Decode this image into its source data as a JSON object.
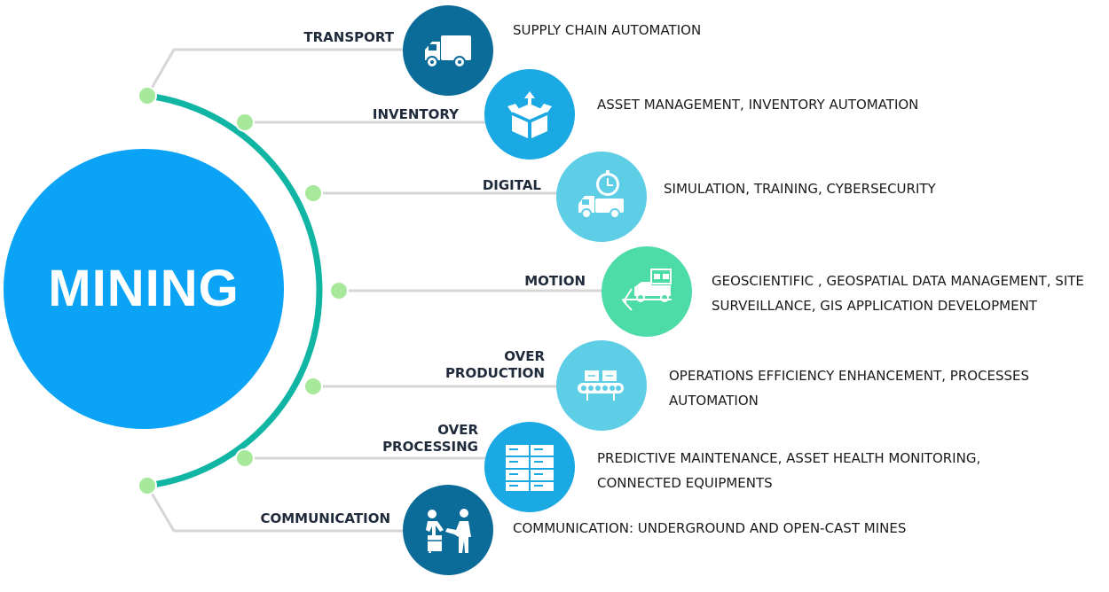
{
  "title": "MINING",
  "colors": {
    "main_circle": "#0aa3f5",
    "arc": "#10b5a3",
    "node": "#a7e99a",
    "connector": "#d6d6d6",
    "transport": "#0b6b99",
    "inventory": "#1aa9e2",
    "digital": "#5ecde6",
    "motion": "#4ddba8",
    "over_production": "#5ecde6",
    "over_processing": "#1aa9e2",
    "communication": "#0b6b99"
  },
  "categories": [
    {
      "key": "transport",
      "label": "TRANSPORT",
      "icon": "truck-icon",
      "description": "SUPPLY CHAIN AUTOMATION"
    },
    {
      "key": "inventory",
      "label": "INVENTORY",
      "icon": "box-arrow-icon",
      "description": "ASSET MANAGEMENT, INVENTORY AUTOMATION"
    },
    {
      "key": "digital",
      "label": "DIGITAL",
      "icon": "truck-clock-icon",
      "description": "SIMULATION, TRAINING, CYBERSECURITY"
    },
    {
      "key": "motion",
      "label": "MOTION",
      "icon": "forklift-motion-icon",
      "description": "GEOSCIENTIFIC , GEOSPATIAL DATA MANAGEMENT, SITE SURVEILLANCE, GIS APPLICATION DEVELOPMENT"
    },
    {
      "key": "over_production",
      "label_line1": "OVER",
      "label_line2": "PRODUCTION",
      "icon": "conveyor-icon",
      "description": "OPERATIONS EFFICIENCY ENHANCEMENT, PROCESSES AUTOMATION"
    },
    {
      "key": "over_processing",
      "label_line1": "OVER",
      "label_line2": "PROCESSING",
      "icon": "stacked-boxes-icon",
      "description": "PREDICTIVE MAINTENANCE, ASSET HEALTH MONITORING, CONNECTED EQUIPMENTS"
    },
    {
      "key": "communication",
      "label": "COMMUNICATION",
      "icon": "people-handshake-icon",
      "description": "COMMUNICATION: UNDERGROUND AND OPEN-CAST MINES"
    }
  ]
}
